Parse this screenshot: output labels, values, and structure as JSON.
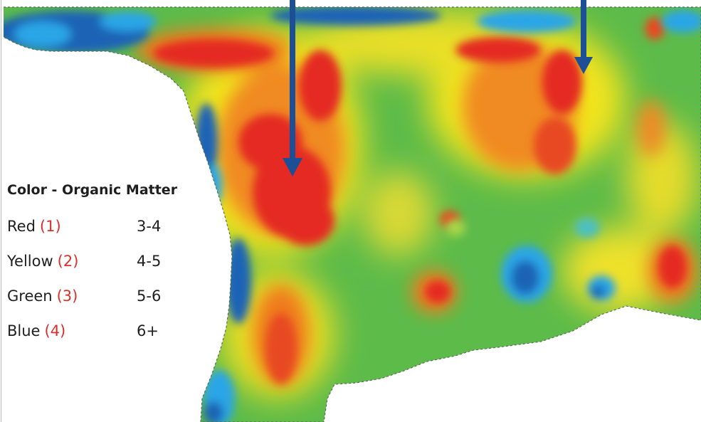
{
  "legend": {
    "title": "Color - Organic Matter",
    "rows": [
      {
        "color_name": "Red",
        "class_number": "(1)",
        "range": "3-4",
        "swatch": "#e62c22"
      },
      {
        "color_name": "Yellow",
        "class_number": "(2)",
        "range": "4-5",
        "swatch": "#f3ea1d"
      },
      {
        "color_name": "Green",
        "class_number": "(3)",
        "range": "5-6",
        "swatch": "#53b947"
      },
      {
        "color_name": "Blue",
        "class_number": "(4)",
        "range": "6+",
        "swatch": "#1565b8"
      }
    ]
  },
  "map": {
    "arrow_color": "#1c4f96",
    "arrows": [
      {
        "name": "arrow-left",
        "points_to": "red zone"
      },
      {
        "name": "arrow-right",
        "points_to": "red zone"
      }
    ]
  }
}
